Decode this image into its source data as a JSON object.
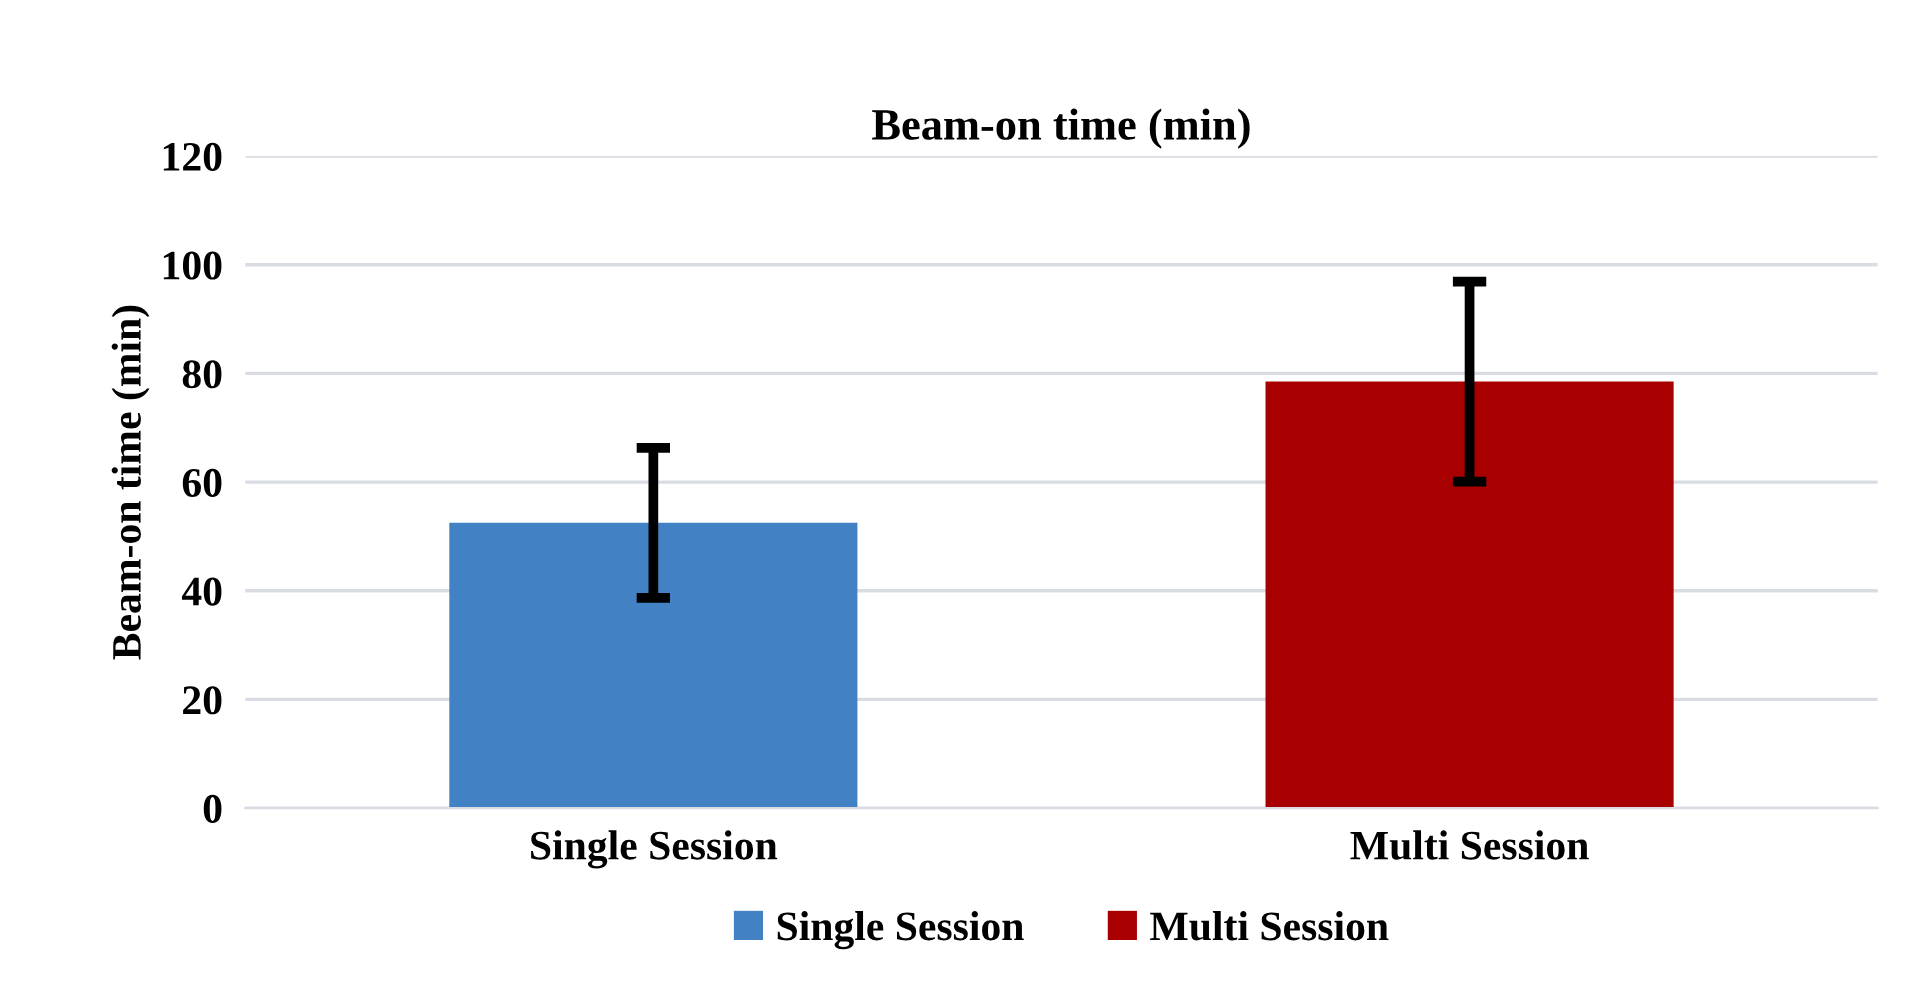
{
  "chart_data": {
    "type": "bar",
    "title": "Beam-on time (min)",
    "ylabel": "Beam-on time (min)",
    "categories": [
      "Single Session",
      "Multi Session"
    ],
    "series": [
      {
        "name": "Single Session",
        "color": "#4282c4",
        "values": [
          52.5,
          null
        ],
        "errors": [
          13.8,
          null
        ]
      },
      {
        "name": "Multi Session",
        "color": "#a80000",
        "values": [
          null,
          78.5
        ],
        "errors": [
          null,
          18.4
        ]
      }
    ],
    "ylim": [
      0,
      120
    ],
    "yticks": [
      0,
      20,
      40,
      60,
      80,
      100,
      120
    ],
    "grid": "y",
    "legend": "bottom"
  }
}
